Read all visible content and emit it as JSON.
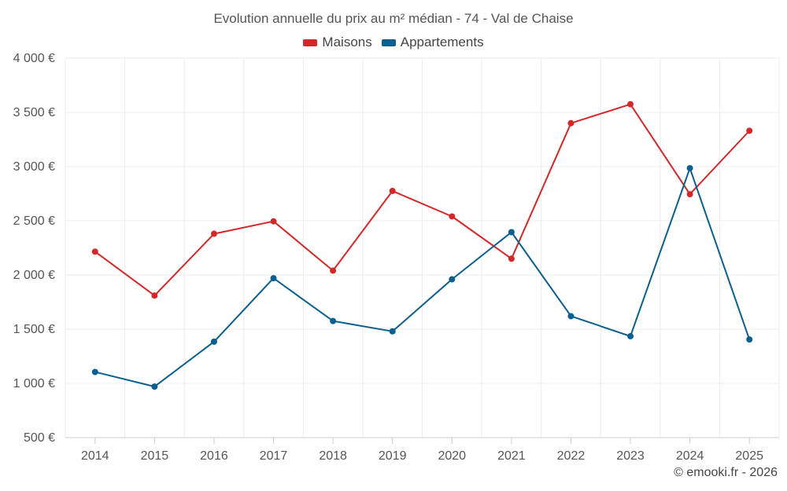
{
  "chart_data": {
    "type": "line",
    "title": "Evolution annuelle du prix au m² médian - 74 - Val de Chaise",
    "xlabel": "",
    "ylabel": "",
    "categories": [
      "2014",
      "2015",
      "2016",
      "2017",
      "2018",
      "2019",
      "2020",
      "2021",
      "2022",
      "2023",
      "2024",
      "2025"
    ],
    "ylim": [
      500,
      4000
    ],
    "yticks": [
      500,
      1000,
      1500,
      2000,
      2500,
      3000,
      3500,
      4000
    ],
    "ytick_labels": [
      "500 €",
      "1 000 €",
      "1 500 €",
      "2 000 €",
      "2 500 €",
      "3 000 €",
      "3 500 €",
      "4 000 €"
    ],
    "grid": true,
    "legend_position": "top-center",
    "series": [
      {
        "name": "Maisons",
        "color": "#d62728",
        "values": [
          2215,
          1810,
          2380,
          2495,
          2040,
          2775,
          2540,
          2150,
          3400,
          3575,
          2745,
          3330
        ]
      },
      {
        "name": "Appartements",
        "color": "#0a5f91",
        "values": [
          1105,
          970,
          1385,
          1970,
          1575,
          1480,
          1960,
          2395,
          1620,
          1435,
          2985,
          1405
        ]
      }
    ]
  },
  "credits": "© emooki.fr - 2026"
}
